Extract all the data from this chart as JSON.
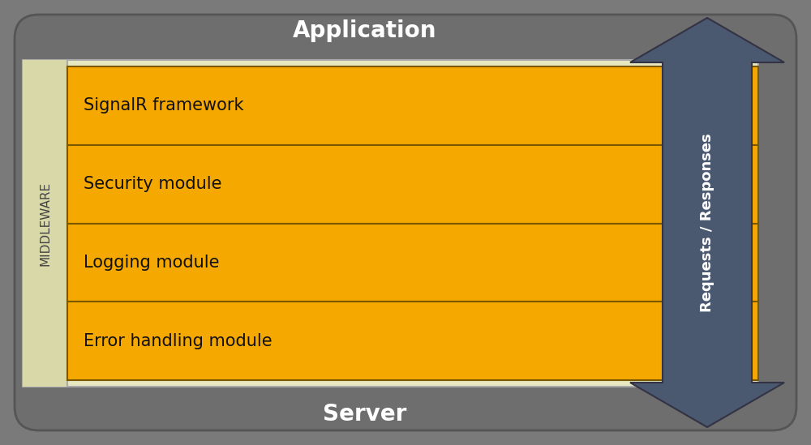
{
  "bg_color": "#7a7a7a",
  "outer_rect_color": "#6e6e6e",
  "app_label": "Application",
  "app_label_color": "#ffffff",
  "app_label_fontsize": 20,
  "server_label": "Server",
  "server_label_color": "#ffffff",
  "server_label_fontsize": 20,
  "middleware_bg_color": "#e8e8c0",
  "middleware_strip_color": "#d8d8a8",
  "middleware_label": "MIDDLEWARE",
  "middleware_label_color": "#444444",
  "middleware_label_fontsize": 11,
  "orange_color": "#f5a800",
  "orange_border_color": "#7a5800",
  "modules": [
    "SignalR framework",
    "Security module",
    "Logging module",
    "Error handling module"
  ],
  "module_text_fontsize": 15,
  "arrow_color": "#4a5870",
  "arrow_label": "Requests / Responses",
  "arrow_label_color": "#ffffff",
  "arrow_label_fontsize": 13
}
